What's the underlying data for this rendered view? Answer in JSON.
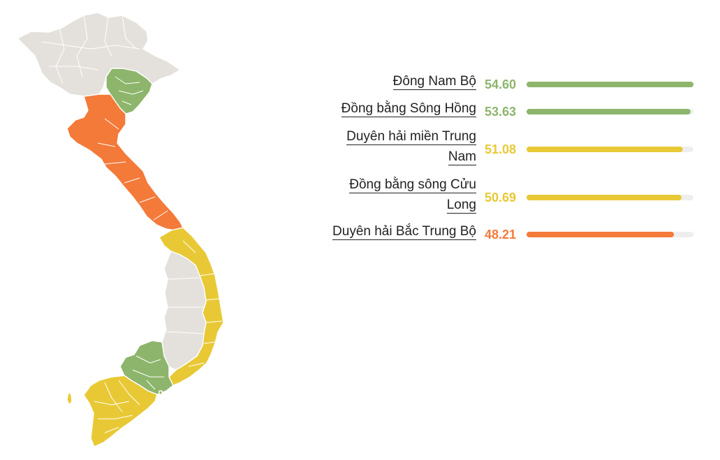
{
  "colors": {
    "green": "#8db56b",
    "yellow": "#e8c935",
    "orange": "#f47a3a",
    "grey": "#e4e0dc",
    "track": "#eeeeee",
    "border": "#ffffff"
  },
  "chart_data": {
    "type": "bar",
    "orientation": "horizontal",
    "xlim": [
      0,
      54.6
    ],
    "categories": [
      "Đông Nam Bộ",
      "Đồng bằng Sông Hồng",
      "Duyên hải miền Trung Nam",
      "Đồng bằng sông Cửu Long",
      "Duyên hải Bắc Trung Bộ"
    ],
    "values": [
      54.6,
      53.63,
      51.08,
      50.69,
      48.21
    ],
    "value_labels": [
      "54.60",
      "53.63",
      "51.08",
      "50.69",
      "48.21"
    ],
    "label_lines": [
      [
        "Đông Nam Bộ"
      ],
      [
        "Đồng bằng Sông Hồng"
      ],
      [
        "Duyên hải miền Trung",
        "Nam"
      ],
      [
        "Đồng bằng sông Cửu",
        "Long"
      ],
      [
        "Duyên hải Bắc Trung Bộ"
      ]
    ],
    "bar_colors": [
      "green",
      "green",
      "yellow",
      "yellow",
      "orange"
    ]
  },
  "map": {
    "regions": [
      {
        "name": "Tây Bắc - Đông Bắc",
        "color": "grey"
      },
      {
        "name": "Đồng bằng Sông Hồng",
        "color": "green"
      },
      {
        "name": "Duyên hải Bắc Trung Bộ",
        "color": "orange"
      },
      {
        "name": "Duyên hải miền Trung Nam",
        "color": "yellow"
      },
      {
        "name": "Tây Nguyên",
        "color": "grey"
      },
      {
        "name": "Đông Nam Bộ",
        "color": "green"
      },
      {
        "name": "Đồng bằng sông Cửu Long",
        "color": "yellow"
      }
    ]
  }
}
